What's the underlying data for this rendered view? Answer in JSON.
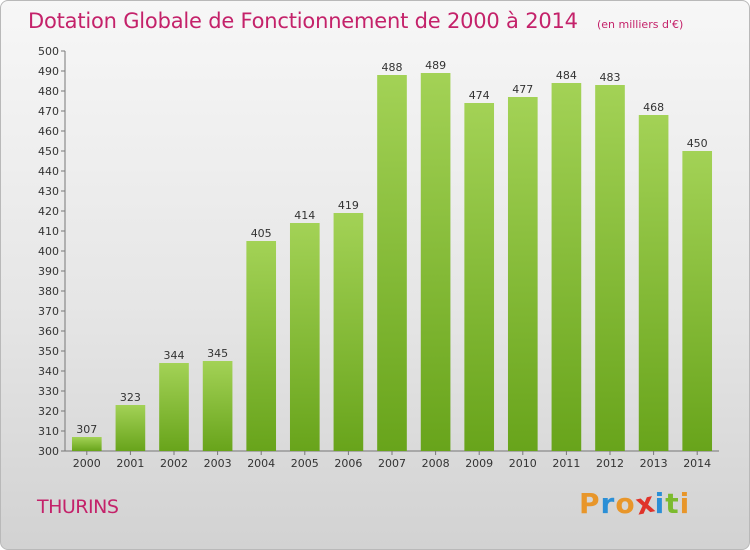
{
  "chart_data": {
    "type": "bar",
    "title": "Dotation Globale de Fonctionnement de 2000 à 2014",
    "unit_label": "(en milliers d'€)",
    "categories": [
      "2000",
      "2001",
      "2002",
      "2003",
      "2004",
      "2005",
      "2006",
      "2007",
      "2008",
      "2009",
      "2010",
      "2011",
      "2012",
      "2013",
      "2014"
    ],
    "values": [
      307,
      323,
      344,
      345,
      405,
      414,
      419,
      488,
      489,
      474,
      477,
      484,
      483,
      468,
      450
    ],
    "ylim": [
      300,
      500
    ],
    "ytick_step": 10,
    "grid": false,
    "bar_color": "#7cbb2e"
  },
  "commune": "THURINS",
  "logo": {
    "letters": [
      "P",
      "r",
      "o",
      "x",
      "i",
      "t",
      "i"
    ],
    "colors": [
      "#e8962a",
      "#2b8fd6",
      "#e8962a",
      "#e0332a",
      "#2b8fd6",
      "#7cbb2e",
      "#e8962a"
    ]
  },
  "colors": {
    "accent": "#c4226a",
    "bar": "#7cbb2e"
  }
}
